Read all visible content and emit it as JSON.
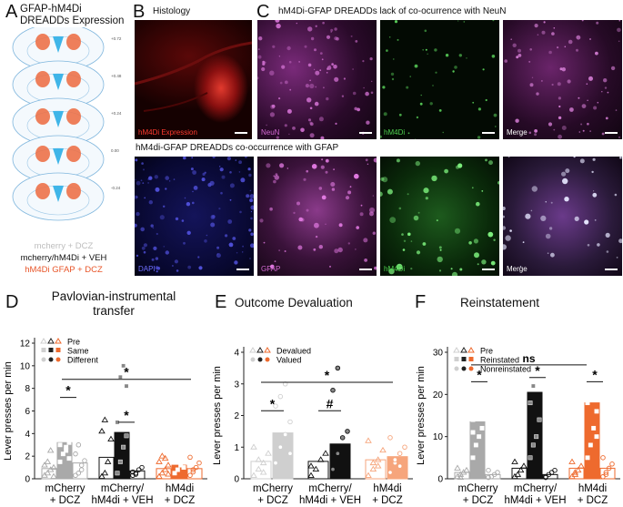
{
  "panel_a": {
    "letter": "A",
    "title_line1": "GFAP-hM4Di",
    "title_line2": "DREADDs Expression",
    "coords": [
      "+0.72",
      "+0.48",
      "+0.24",
      "0.00",
      "-0.24"
    ],
    "legend": [
      {
        "label": "mcherry + DCZ",
        "color": "#bdbdbd"
      },
      {
        "label": "mcherry/hM4Di + VEH",
        "color": "#111111"
      },
      {
        "label": "hM4Di GFAP + DCZ",
        "color": "#e8562a"
      }
    ]
  },
  "panel_b": {
    "letter": "B",
    "title": "Histology",
    "image_label": "hM4Di Expression"
  },
  "panel_c": {
    "letter": "C",
    "title_top": "hM4Di-GFAP DREADDs lack of co-ocurrence with NeuN",
    "title_bottom": "hM4di-GFAP DREADDs co-occurrence with GFAP",
    "top_labels": [
      "NeuN",
      "hM4Di",
      "Merge"
    ],
    "bottom_labels": [
      "DAPI",
      "GFAP",
      "hM4Di",
      "Merge"
    ]
  },
  "panel_d": {
    "letter": "D",
    "title_line1": "Pavlovian-instrumental",
    "title_line2": "transfer"
  },
  "panel_e": {
    "letter": "E",
    "title": "Outcome Devaluation"
  },
  "panel_f": {
    "letter": "F",
    "title": "Reinstatement"
  },
  "colors": {
    "grey": "#a9a9a9",
    "black": "#111111",
    "orange": "#ee6a2e",
    "light_grey": "#cfcfcf",
    "light_orange": "#f6a57c"
  },
  "chart_data": [
    {
      "type": "bar",
      "panel": "D",
      "title": "Pavlovian-instrumental transfer",
      "ylabel": "Lever presses per min",
      "ylim": [
        0,
        12
      ],
      "yticks": [
        0,
        2,
        4,
        6,
        8,
        10,
        12
      ],
      "legend": [
        "Pre",
        "Same",
        "Different"
      ],
      "group_labels": [
        [
          "mCherry",
          "+ DCZ"
        ],
        [
          "mCherry/",
          "hM4di + VEH"
        ],
        [
          "hM4di",
          "+ DCZ"
        ]
      ],
      "groups": [
        {
          "name": "mCherry + DCZ",
          "color_key": "grey",
          "values": [
            0.9,
            3.2,
            1.4
          ]
        },
        {
          "name": "mCherry/hM4di + VEH",
          "color_key": "black",
          "values": [
            1.9,
            4.1,
            0.7
          ]
        },
        {
          "name": "hM4di + DCZ",
          "color_key": "orange",
          "values": [
            0.9,
            1.2,
            0.9
          ]
        }
      ],
      "points": [
        [
          [
            0.3,
            0.5,
            0.8,
            1.0,
            1.2,
            1.5,
            2.5,
            0.2
          ],
          [
            1.5,
            2.2,
            2.8,
            3.2,
            3.5,
            3.8,
            2.5,
            1.8,
            3.0
          ],
          [
            0.3,
            0.5,
            1.2,
            1.6,
            2.2,
            3.0,
            0.8
          ]
        ],
        [
          [
            0.2,
            0.5,
            1.5,
            3.5,
            4.2,
            5.2
          ],
          [
            0.5,
            1.5,
            2.8,
            3.8,
            5.0,
            9.0,
            10.0,
            8.2
          ],
          [
            0.3,
            0.5,
            0.8,
            1.0,
            0.6,
            0.4
          ]
        ],
        [
          [
            0.2,
            0.5,
            0.8,
            1.2,
            1.5,
            2.0,
            1.8,
            0.4
          ],
          [
            0.5,
            0.8,
            1.2,
            1.5,
            2.0,
            2.2,
            1.8,
            1.0
          ],
          [
            0.3,
            0.6,
            1.0,
            1.4,
            1.9,
            0.8
          ]
        ]
      ],
      "annotations": [
        "*",
        "*",
        "*"
      ]
    },
    {
      "type": "bar",
      "panel": "E",
      "title": "Outcome Devaluation",
      "ylabel": "Lever presses per min",
      "ylim": [
        0,
        4
      ],
      "yticks": [
        0,
        1,
        2,
        3,
        4
      ],
      "legend": [
        "Devalued",
        "Valued"
      ],
      "group_labels": [
        [
          "mCherry",
          "+ DCZ"
        ],
        [
          "mCherry/",
          "hM4di + VEH"
        ],
        [
          "hM4di",
          "+ DCZ"
        ]
      ],
      "groups": [
        {
          "name": "mCherry + DCZ",
          "color_key": "light_grey",
          "values": [
            0.55,
            1.45
          ]
        },
        {
          "name": "mCherry/hM4di + VEH",
          "color_key": "black",
          "values": [
            0.55,
            1.1
          ]
        },
        {
          "name": "hM4di + DCZ",
          "color_key": "light_orange",
          "values": [
            0.6,
            0.7
          ]
        }
      ],
      "points": [
        [
          [
            0.1,
            0.3,
            0.5,
            0.8,
            1.0,
            0.6,
            0.2
          ],
          [
            0.5,
            1.0,
            1.4,
            1.8,
            2.3,
            2.6,
            3.0,
            0.8
          ]
        ],
        [
          [
            0.1,
            0.3,
            0.6,
            0.8,
            0.4
          ],
          [
            0.3,
            0.8,
            1.3,
            1.5,
            2.8,
            3.5
          ]
        ],
        [
          [
            0.1,
            0.3,
            0.6,
            0.9,
            1.2,
            0.5,
            0.4
          ],
          [
            0.2,
            0.5,
            0.8,
            1.0,
            1.3,
            0.6,
            0.4
          ]
        ]
      ],
      "annotations": [
        "*",
        "#",
        "*"
      ]
    },
    {
      "type": "bar",
      "panel": "F",
      "title": "Reinstatement",
      "ylabel": "Lever presses per min",
      "ylim": [
        0,
        30
      ],
      "yticks": [
        0,
        10,
        20,
        30
      ],
      "legend": [
        "Pre",
        "Reinstated",
        "Nonreinstated"
      ],
      "group_labels": [
        [
          "mCherry",
          "+ DCZ"
        ],
        [
          "mCherry/",
          "hM4di + VEH"
        ],
        [
          "hM4di",
          "+ DCZ"
        ]
      ],
      "groups": [
        {
          "name": "mCherry + DCZ",
          "color_key": "grey",
          "values": [
            1.5,
            13.5,
            1.0
          ]
        },
        {
          "name": "mCherry/hM4di + VEH",
          "color_key": "black",
          "values": [
            2.5,
            20.5,
            1.0
          ]
        },
        {
          "name": "hM4di + DCZ",
          "color_key": "orange",
          "values": [
            2.5,
            18.0,
            2.5
          ]
        }
      ],
      "points": [
        [
          [
            0.5,
            1.0,
            1.5,
            2.0,
            2.5,
            0.3
          ],
          [
            5,
            8,
            10,
            12,
            14,
            16,
            22,
            20,
            11
          ],
          [
            0.3,
            0.5,
            1.0,
            1.5,
            2.0
          ]
        ],
        [
          [
            0.5,
            1.0,
            2.0,
            3.0,
            4.0
          ],
          [
            5,
            8,
            10,
            14,
            18,
            22
          ],
          [
            0.5,
            1.0,
            1.5,
            2.0,
            0.3
          ]
        ],
        [
          [
            0.5,
            1.0,
            2.0,
            3.0,
            4.0,
            1.5
          ],
          [
            5,
            8,
            12,
            16,
            18,
            20,
            22,
            10
          ],
          [
            0.5,
            1.5,
            2.5,
            3.5,
            5.0,
            1.0
          ]
        ]
      ],
      "annotations": [
        "*",
        "*",
        "*",
        "ns"
      ]
    }
  ]
}
